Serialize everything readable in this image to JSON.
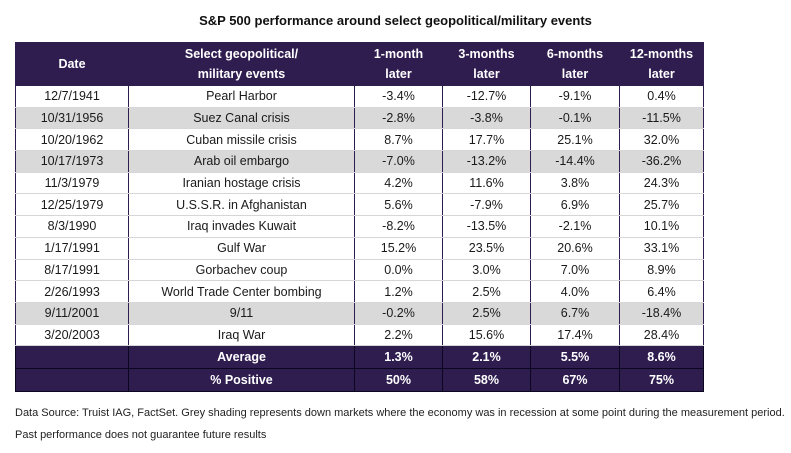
{
  "title": "S&P 500 performance around select geopolitical/military events",
  "chart_data": {
    "type": "table",
    "columns": [
      "Date",
      "Select geopolitical/ military events",
      "1-month later",
      "3-months later",
      "6-months later",
      "12-months later"
    ],
    "header": {
      "date": "Date",
      "event_line1": "Select geopolitical/",
      "event_line2": "military events",
      "m1_line1": "1-month",
      "m1_line2": "later",
      "m3_line1": "3-months",
      "m3_line2": "later",
      "m6_line1": "6-months",
      "m6_line2": "later",
      "m12_line1": "12-months",
      "m12_line2": "later"
    },
    "rows": [
      {
        "date": "12/7/1941",
        "event": "Pearl Harbor",
        "m1": "-3.4%",
        "m3": "-12.7%",
        "m6": "-9.1%",
        "m12": "0.4%",
        "shaded": false
      },
      {
        "date": "10/31/1956",
        "event": "Suez Canal crisis",
        "m1": "-2.8%",
        "m3": "-3.8%",
        "m6": "-0.1%",
        "m12": "-11.5%",
        "shaded": true
      },
      {
        "date": "10/20/1962",
        "event": "Cuban missile crisis",
        "m1": "8.7%",
        "m3": "17.7%",
        "m6": "25.1%",
        "m12": "32.0%",
        "shaded": false
      },
      {
        "date": "10/17/1973",
        "event": "Arab oil embargo",
        "m1": "-7.0%",
        "m3": "-13.2%",
        "m6": "-14.4%",
        "m12": "-36.2%",
        "shaded": true
      },
      {
        "date": "11/3/1979",
        "event": "Iranian hostage crisis",
        "m1": "4.2%",
        "m3": "11.6%",
        "m6": "3.8%",
        "m12": "24.3%",
        "shaded": false
      },
      {
        "date": "12/25/1979",
        "event": "U.S.S.R. in Afghanistan",
        "m1": "5.6%",
        "m3": "-7.9%",
        "m6": "6.9%",
        "m12": "25.7%",
        "shaded": false
      },
      {
        "date": "8/3/1990",
        "event": "Iraq invades Kuwait",
        "m1": "-8.2%",
        "m3": "-13.5%",
        "m6": "-2.1%",
        "m12": "10.1%",
        "shaded": false
      },
      {
        "date": "1/17/1991",
        "event": "Gulf War",
        "m1": "15.2%",
        "m3": "23.5%",
        "m6": "20.6%",
        "m12": "33.1%",
        "shaded": false
      },
      {
        "date": "8/17/1991",
        "event": "Gorbachev coup",
        "m1": "0.0%",
        "m3": "3.0%",
        "m6": "7.0%",
        "m12": "8.9%",
        "shaded": false
      },
      {
        "date": "2/26/1993",
        "event": "World Trade Center bombing",
        "m1": "1.2%",
        "m3": "2.5%",
        "m6": "4.0%",
        "m12": "6.4%",
        "shaded": false
      },
      {
        "date": "9/11/2001",
        "event": "9/11",
        "m1": "-0.2%",
        "m3": "2.5%",
        "m6": "6.7%",
        "m12": "-18.4%",
        "shaded": true
      },
      {
        "date": "3/20/2003",
        "event": "Iraq War",
        "m1": "2.2%",
        "m3": "15.6%",
        "m6": "17.4%",
        "m12": "28.4%",
        "shaded": false
      }
    ],
    "summary": [
      {
        "label": "Average",
        "m1": "1.3%",
        "m3": "2.1%",
        "m6": "5.5%",
        "m12": "8.6%"
      },
      {
        "label": "% Positive",
        "m1": "50%",
        "m3": "58%",
        "m6": "67%",
        "m12": "75%"
      }
    ]
  },
  "footnote": "Data Source: Truist IAG, FactSet. Grey shading represents down markets where the economy was in recession at some point during the measurement period. Past performance does not guarantee future results",
  "colors": {
    "header_bg": "#2f1d4f",
    "shade": "#d9d9d9"
  }
}
